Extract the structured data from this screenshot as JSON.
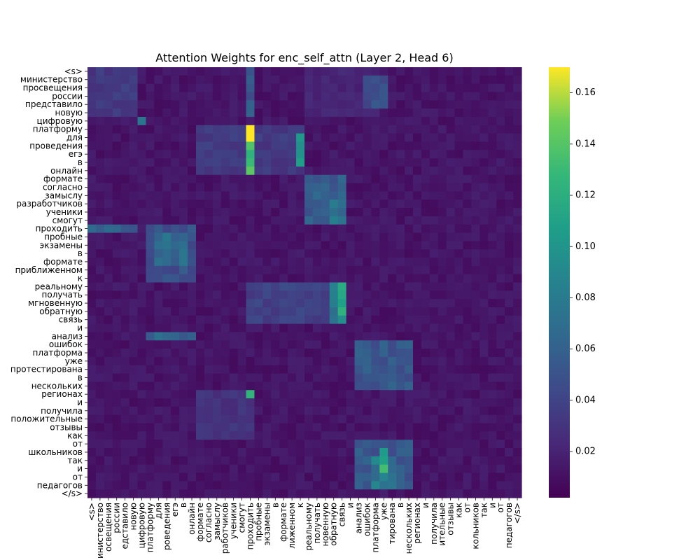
{
  "chart_data": {
    "type": "heatmap",
    "title": "Attention Weights for enc_self_attn (Layer 2, Head 6)",
    "xlabel": "",
    "ylabel": "",
    "colormap": "viridis",
    "colorbar": {
      "range": [
        0.002,
        0.17
      ],
      "ticks": [
        0.02,
        0.04,
        0.06,
        0.08,
        0.1,
        0.12,
        0.14,
        0.16
      ],
      "tick_labels": [
        "0.02",
        "0.04",
        "0.06",
        "0.08",
        "0.10",
        "0.12",
        "0.14",
        "0.16"
      ]
    },
    "tokens": [
      "<s>",
      "министерство",
      "просвещения",
      "россии",
      "представило",
      "новую",
      "цифровую",
      "платформу",
      "для",
      "проведения",
      "егэ",
      "в",
      "онлайн",
      "формате",
      "согласно",
      "замыслу",
      "разработчиков",
      "ученики",
      "смогут",
      "проходить",
      "пробные",
      "экзамены",
      "в",
      "формате",
      "приближенном",
      "к",
      "реальному",
      "получать",
      "мгновенную",
      "обратную",
      "связь",
      "и",
      "анализ",
      "ошибок",
      "платформа",
      "уже",
      "протестирована",
      "в",
      "нескольких",
      "регионах",
      "и",
      "получила",
      "положительные",
      "отзывы",
      "как",
      "от",
      "школьников",
      "так",
      "и",
      "от",
      "педагогов",
      "</s>"
    ],
    "x_tick_labels_visible": [
      "<s>",
      "инистерство",
      "освещения",
      "россии",
      "едставило",
      "новую",
      "цифровую",
      "платформу",
      "для",
      "роведения",
      "егэ",
      "в",
      "онлайн",
      "формате",
      "согласно",
      "замыслу",
      "работчиков",
      "ученики",
      "смогут",
      "проходить",
      "пробные",
      "экзамены",
      "в",
      "формате",
      "лиженном",
      "к",
      "реальному",
      "получать",
      "новенную",
      "обратную",
      "связь",
      "и",
      "анализ",
      "ошибок",
      "платформа",
      "уже",
      "тирована",
      "в",
      "нескольких",
      "регионах",
      "и",
      "получила",
      "ительные",
      "отзывы",
      "как",
      "от",
      "кольников",
      "так",
      "и",
      "от",
      "педагогов",
      "</s>"
    ],
    "y_tick_labels_visible": [
      "<s>",
      "министерство",
      "просвещения",
      "россии",
      "представило",
      "новую",
      "цифровую",
      "платформу",
      "для",
      "проведения",
      "егэ",
      "в",
      "онлайн",
      "формате",
      "согласно",
      "замыслу",
      "разработчиков",
      "ученики",
      "смогут",
      "проходить",
      "пробные",
      "экзамены",
      "в",
      "формате",
      "приближенном",
      "к",
      "реальному",
      "получать",
      "мгновенную",
      "обратную",
      "связь",
      "и",
      "анализ",
      "ошибок",
      "платформа",
      "уже",
      "протестирована",
      "в",
      "нескольких",
      "регионах",
      "и",
      "получила",
      "положительные",
      "отзывы",
      "как",
      "от",
      "школьников",
      "так",
      "и",
      "от",
      "педагогов",
      "</s>"
    ],
    "base_value": 0.012,
    "blocks": [
      {
        "rows": [
          0,
          5
        ],
        "cols": [
          0,
          5
        ],
        "value": 0.035
      },
      {
        "rows": [
          0,
          5
        ],
        "cols": [
          19,
          19
        ],
        "value": 0.055
      },
      {
        "rows": [
          0,
          5
        ],
        "cols": [
          26,
          34
        ],
        "value": 0.022
      },
      {
        "rows": [
          1,
          4
        ],
        "cols": [
          33,
          35
        ],
        "value": 0.05
      },
      {
        "rows": [
          6,
          6
        ],
        "cols": [
          6,
          6
        ],
        "value": 0.085
      },
      {
        "rows": [
          7,
          12
        ],
        "cols": [
          13,
          25
        ],
        "value": 0.035
      },
      {
        "rows": [
          7,
          12
        ],
        "cols": [
          19,
          19
        ],
        "value": 0.13
      },
      {
        "rows": [
          7,
          8
        ],
        "cols": [
          19,
          19
        ],
        "value": 0.165
      },
      {
        "rows": [
          8,
          11
        ],
        "cols": [
          25,
          25
        ],
        "value": 0.095
      },
      {
        "rows": [
          13,
          18
        ],
        "cols": [
          26,
          30
        ],
        "value": 0.06
      },
      {
        "rows": [
          16,
          18
        ],
        "cols": [
          29,
          30
        ],
        "value": 0.075
      },
      {
        "rows": [
          19,
          19
        ],
        "cols": [
          0,
          5
        ],
        "value": 0.06
      },
      {
        "rows": [
          19,
          25
        ],
        "cols": [
          7,
          12
        ],
        "value": 0.05
      },
      {
        "rows": [
          20,
          23
        ],
        "cols": [
          8,
          11
        ],
        "value": 0.07
      },
      {
        "rows": [
          26,
          30
        ],
        "cols": [
          19,
          30
        ],
        "value": 0.04
      },
      {
        "rows": [
          26,
          30
        ],
        "cols": [
          29,
          30
        ],
        "value": 0.075
      },
      {
        "rows": [
          26,
          26
        ],
        "cols": [
          30,
          30
        ],
        "value": 0.13
      },
      {
        "rows": [
          27,
          30
        ],
        "cols": [
          30,
          30
        ],
        "value": 0.11
      },
      {
        "rows": [
          32,
          32
        ],
        "cols": [
          7,
          12
        ],
        "value": 0.065
      },
      {
        "rows": [
          33,
          38
        ],
        "cols": [
          32,
          38
        ],
        "value": 0.055
      },
      {
        "rows": [
          39,
          39
        ],
        "cols": [
          19,
          19
        ],
        "value": 0.11
      },
      {
        "rows": [
          39,
          44
        ],
        "cols": [
          13,
          19
        ],
        "value": 0.03
      },
      {
        "rows": [
          45,
          50
        ],
        "cols": [
          32,
          38
        ],
        "value": 0.055
      },
      {
        "rows": [
          46,
          48
        ],
        "cols": [
          35,
          35
        ],
        "value": 0.12
      },
      {
        "rows": [
          47,
          50
        ],
        "cols": [
          34,
          36
        ],
        "value": 0.08
      }
    ]
  }
}
